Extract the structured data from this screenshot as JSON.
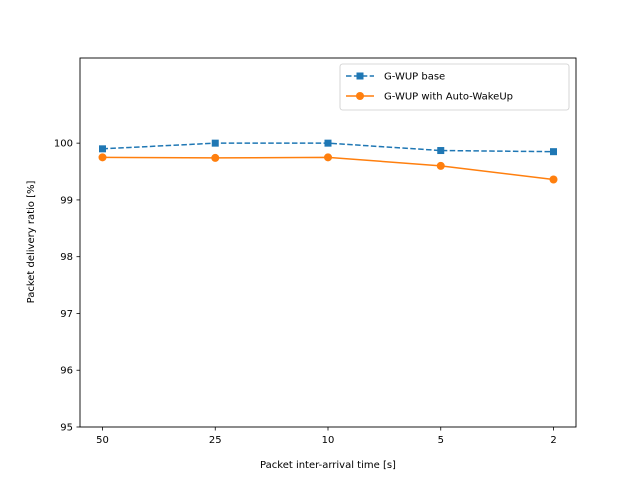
{
  "chart_data": {
    "type": "line",
    "categories": [
      "50",
      "25",
      "10",
      "5",
      "2"
    ],
    "xlabel": "Packet inter-arrival time [s]",
    "ylabel": "Packet delivery ratio [%]",
    "ylim": [
      95,
      101.5
    ],
    "yticks": [
      95,
      96,
      97,
      98,
      99,
      100
    ],
    "grid": false,
    "legend_position": "top-right",
    "series": [
      {
        "name": "G-WUP base",
        "values": [
          99.9,
          100.0,
          100.0,
          99.87,
          99.85
        ],
        "color": "#1f77b4",
        "marker": "square",
        "linestyle": "dashed"
      },
      {
        "name": "G-WUP with Auto-WakeUp",
        "values": [
          99.75,
          99.74,
          99.75,
          99.6,
          99.36
        ],
        "color": "#ff7f0e",
        "marker": "circle",
        "linestyle": "solid"
      }
    ]
  }
}
